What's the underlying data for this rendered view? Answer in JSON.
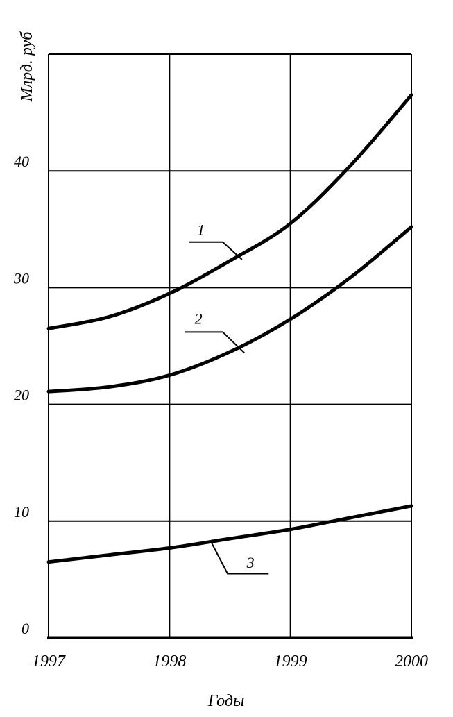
{
  "chart_data": {
    "type": "line",
    "title": "",
    "xlabel": "Годы",
    "ylabel": "Млрд. руб",
    "x": [
      1997,
      1997.5,
      1998,
      1998.5,
      1999,
      1999.5,
      2000
    ],
    "xlim": [
      1997,
      2000
    ],
    "ylim": [
      0,
      50
    ],
    "x_ticks": [
      "1997",
      "1998",
      "1999",
      "2000"
    ],
    "y_ticks": [
      "0",
      "10",
      "20",
      "30",
      "40"
    ],
    "grid": true,
    "series": [
      {
        "name": "1",
        "values": [
          26.5,
          27.5,
          29.5,
          32.3,
          35.5,
          40.5,
          46.5
        ]
      },
      {
        "name": "2",
        "values": [
          21.1,
          21.5,
          22.5,
          24.5,
          27.3,
          30.9,
          35.2
        ]
      },
      {
        "name": "3",
        "values": [
          6.5,
          7.1,
          7.7,
          8.5,
          9.3,
          10.3,
          11.3
        ]
      }
    ],
    "colors": {
      "line": "#000000",
      "grid": "#000000"
    }
  }
}
